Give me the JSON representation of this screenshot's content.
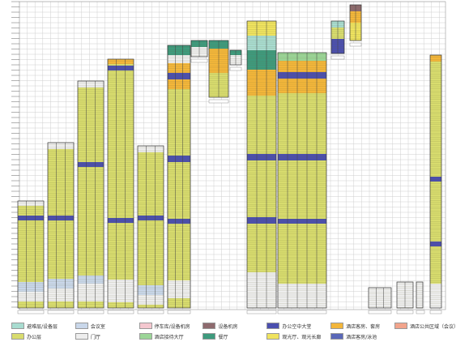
{
  "colors": {
    "office": "#d8dc6e",
    "refuge": "#a8dcd0",
    "meeting": "#c9d7ea",
    "parking": "#f4c7cf",
    "machine": "#8e6a6e",
    "hub": "#4b4fae",
    "hotel_room": "#f3b63a",
    "hotel_public": "#f2a48c",
    "lobby": "#eeeeee",
    "hotel_lobby": "#9bd597",
    "restaurant": "#3e9a7d",
    "observation": "#efe35f",
    "hotel_spa": "#5a68b8"
  },
  "legend": [
    {
      "color": "#a8dcd0",
      "label": "避难层/设备层"
    },
    {
      "color": "#c9d7ea",
      "label": "会议室"
    },
    {
      "color": "#f4c7cf",
      "label": "停车库/设备机房"
    },
    {
      "color": "#8e6a6e",
      "label": "设备机房"
    },
    {
      "color": "#4b4fae",
      "label": "办公空中大堂"
    },
    {
      "color": "#f3b63a",
      "label": "酒店客房、套房"
    },
    {
      "color": "#f2a48c",
      "label": "酒店公共区域（会议）"
    },
    {
      "color": "#d8dc6e",
      "label": "办公层"
    },
    {
      "color": "#eeeeee",
      "label": "门厅"
    },
    {
      "color": "#9bd597",
      "label": "酒店接待大厅"
    },
    {
      "color": "#3e9a7d",
      "label": "餐厅"
    },
    {
      "color": "#efe35f",
      "label": "观光厅、观光长廊"
    },
    {
      "color": "#5a68b8",
      "label": "酒店客房/泳池"
    }
  ]
}
